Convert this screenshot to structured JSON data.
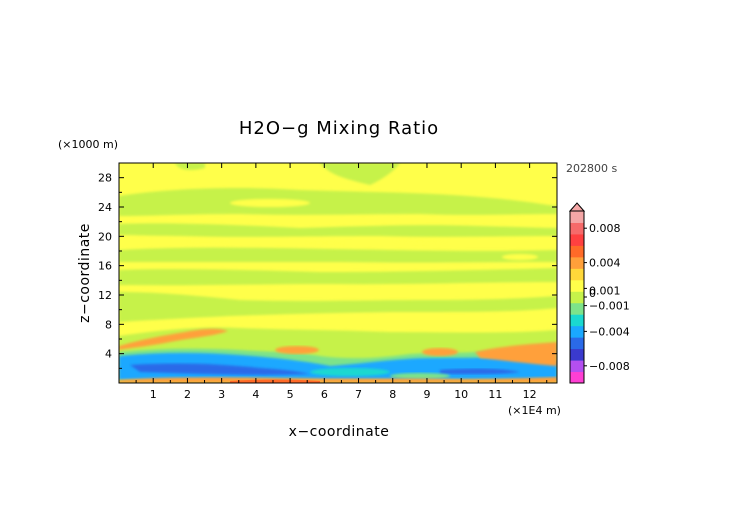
{
  "chart_data": {
    "type": "heatmap",
    "title": "H2O−g Mixing Ratio",
    "xlabel": "x−coordinate",
    "ylabel": "z−coordinate",
    "x_unit": "(×1E4 m)",
    "y_unit": "(×1000 m)",
    "time_label": "202800 s",
    "xlim": [
      0,
      12.8
    ],
    "ylim": [
      0,
      30
    ],
    "x_ticks": [
      1,
      2,
      3,
      4,
      5,
      6,
      7,
      8,
      9,
      10,
      11,
      12
    ],
    "y_ticks": [
      4,
      8,
      12,
      16,
      20,
      24,
      28
    ],
    "colorbar": {
      "labels": [
        "0.008",
        "0.004",
        "0.001",
        "0",
        "−0.001",
        "−0.004",
        "−0.008"
      ],
      "label_values": [
        0.008,
        0.004,
        0.001,
        0,
        -0.001,
        -0.004,
        -0.008
      ],
      "range": [
        -0.01,
        0.01
      ],
      "extend": "max",
      "colors": [
        "#ff3fd4",
        "#b44ff0",
        "#3a3acd",
        "#2a6ae8",
        "#1aa8ff",
        "#1ad8d0",
        "#7de38a",
        "#c6f24a",
        "#ffff4a",
        "#ffd83a",
        "#ffa03a",
        "#ff6a28",
        "#ff4040",
        "#f66a6a",
        "#f4a6a6"
      ]
    },
    "regions": [
      {
        "name": "Near-zero background",
        "value": 0.0002
      },
      {
        "name": "Slightly negative horizontal bands",
        "value": -0.0005
      },
      {
        "name": "Strongly negative low-level layer",
        "value": -0.003
      },
      {
        "name": "Positive surface layer",
        "value": 0.002
      },
      {
        "name": "Positive tongue near z=6 km",
        "value": 0.0015
      },
      {
        "name": "Positive patch near x=11-12.8, z=4 km",
        "value": 0.002
      }
    ]
  }
}
